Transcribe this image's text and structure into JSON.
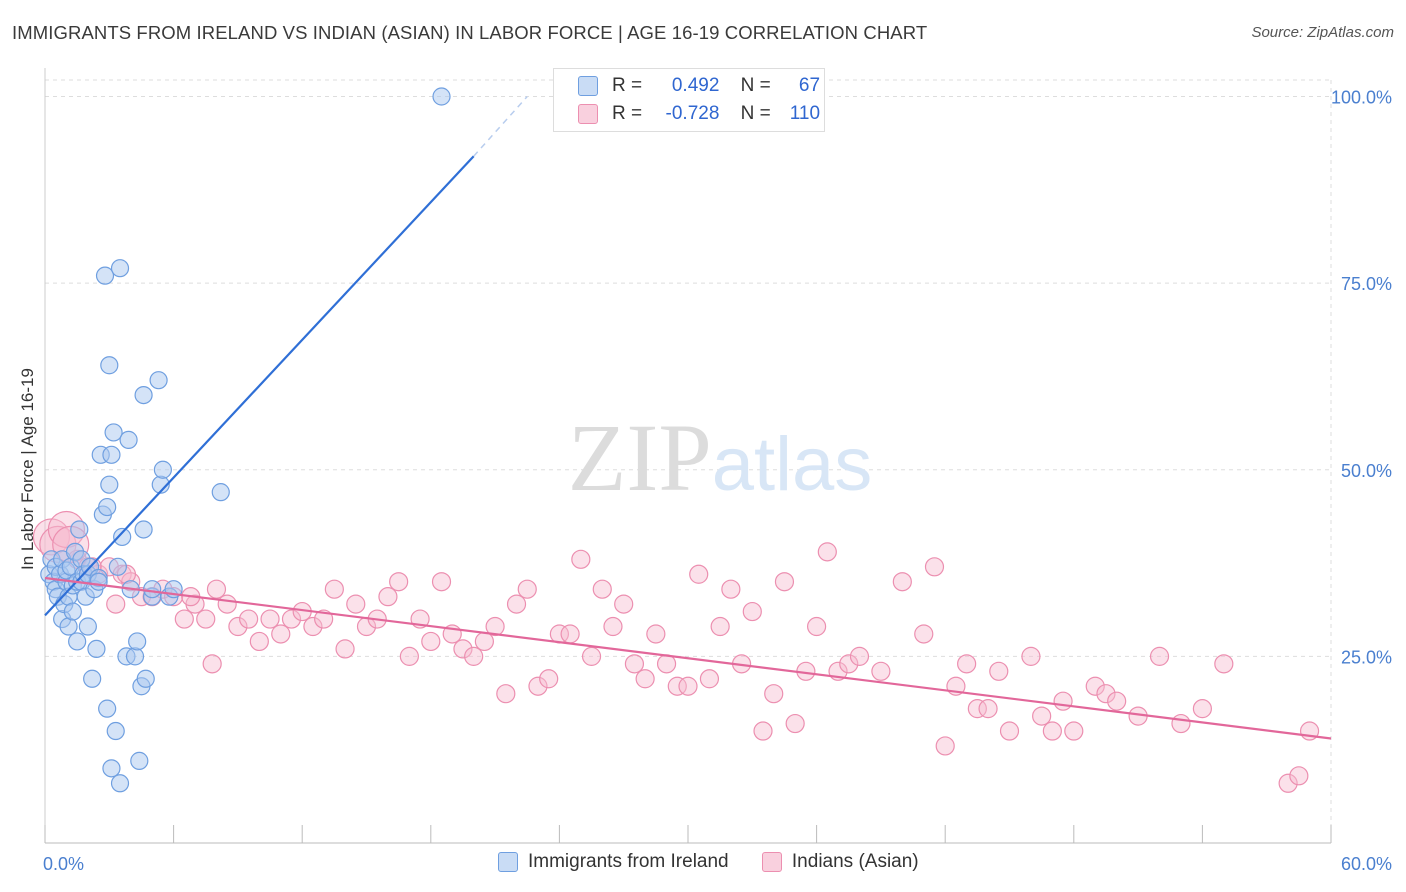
{
  "title": "IMMIGRANTS FROM IRELAND VS INDIAN (ASIAN) IN LABOR FORCE | AGE 16-19 CORRELATION CHART",
  "source": "Source: ZipAtlas.com",
  "watermark": "ZIPatlas",
  "legend": {
    "series1": {
      "r_label": "R =",
      "r_value": "0.492",
      "n_label": "N =",
      "n_value": "67"
    },
    "series2": {
      "r_label": "R =",
      "r_value": "-0.728",
      "n_label": "N =",
      "n_value": "110"
    }
  },
  "colors": {
    "blue_fill": "#aac8f0",
    "blue_stroke": "#6f9fe0",
    "blue_line": "#2f6fd6",
    "pink_fill": "#f7bcd0",
    "pink_stroke": "#ec8fb0",
    "pink_line": "#e2679a",
    "tick_color": "#4a7fcf",
    "grid": "#dddddd"
  },
  "chart_data": {
    "type": "scatter",
    "xlabel": "",
    "ylabel": "In Labor Force | Age 16-19",
    "xlim": [
      0,
      60
    ],
    "ylim": [
      0,
      100
    ],
    "x_tick_labels": [
      "0.0%",
      "60.0%"
    ],
    "y_ticks": [
      25,
      50,
      75,
      100
    ],
    "y_tick_labels": [
      "25.0%",
      "50.0%",
      "75.0%",
      "100.0%"
    ],
    "grid": "horizontal dashed",
    "legend_position": "bottom",
    "series": [
      {
        "name": "Immigrants from Ireland",
        "points": [
          [
            0.2,
            36
          ],
          [
            0.3,
            38
          ],
          [
            0.4,
            35
          ],
          [
            0.5,
            34
          ],
          [
            0.5,
            37
          ],
          [
            0.6,
            33
          ],
          [
            0.7,
            36
          ],
          [
            0.8,
            38
          ],
          [
            0.8,
            30
          ],
          [
            0.9,
            32
          ],
          [
            1.0,
            35
          ],
          [
            1.0,
            36.5
          ],
          [
            1.1,
            29
          ],
          [
            1.1,
            33
          ],
          [
            1.2,
            37
          ],
          [
            1.3,
            34.5
          ],
          [
            1.3,
            31
          ],
          [
            1.4,
            39
          ],
          [
            1.5,
            35
          ],
          [
            1.5,
            27
          ],
          [
            1.6,
            42
          ],
          [
            1.7,
            38
          ],
          [
            1.7,
            35
          ],
          [
            1.8,
            36
          ],
          [
            1.9,
            33
          ],
          [
            2.0,
            29
          ],
          [
            2.0,
            36
          ],
          [
            2.1,
            37
          ],
          [
            2.2,
            22
          ],
          [
            2.3,
            34
          ],
          [
            2.4,
            26
          ],
          [
            2.5,
            35.5
          ],
          [
            2.5,
            35
          ],
          [
            2.6,
            52
          ],
          [
            2.7,
            44
          ],
          [
            2.8,
            76
          ],
          [
            2.9,
            45
          ],
          [
            2.9,
            18
          ],
          [
            3.0,
            64
          ],
          [
            3.0,
            48
          ],
          [
            3.1,
            52
          ],
          [
            3.1,
            10
          ],
          [
            3.2,
            55
          ],
          [
            3.3,
            15
          ],
          [
            3.4,
            37
          ],
          [
            3.5,
            8
          ],
          [
            3.5,
            77
          ],
          [
            3.6,
            41
          ],
          [
            3.8,
            25
          ],
          [
            3.9,
            54
          ],
          [
            4.0,
            34
          ],
          [
            4.2,
            25
          ],
          [
            4.3,
            27
          ],
          [
            4.4,
            11
          ],
          [
            4.5,
            21
          ],
          [
            4.6,
            42
          ],
          [
            4.6,
            60
          ],
          [
            4.7,
            22
          ],
          [
            5.0,
            33
          ],
          [
            5.0,
            34
          ],
          [
            5.3,
            62
          ],
          [
            5.4,
            48
          ],
          [
            5.5,
            50
          ],
          [
            5.8,
            33
          ],
          [
            6.0,
            34
          ],
          [
            8.2,
            47
          ],
          [
            18.5,
            100
          ]
        ]
      },
      {
        "name": "Indians (Asian)",
        "points": [
          [
            0.3,
            41
          ],
          [
            0.6,
            40
          ],
          [
            1.0,
            42
          ],
          [
            1.5,
            38
          ],
          [
            2.0,
            37
          ],
          [
            2.5,
            36
          ],
          [
            3.0,
            37
          ],
          [
            3.3,
            32
          ],
          [
            3.6,
            36
          ],
          [
            4.0,
            35
          ],
          [
            4.5,
            33
          ],
          [
            5.0,
            33
          ],
          [
            5.5,
            34
          ],
          [
            6.0,
            33
          ],
          [
            6.5,
            30
          ],
          [
            7.0,
            32
          ],
          [
            7.5,
            30
          ],
          [
            8.0,
            34
          ],
          [
            8.5,
            32
          ],
          [
            9.0,
            29
          ],
          [
            9.5,
            30
          ],
          [
            10.0,
            27
          ],
          [
            10.5,
            30
          ],
          [
            11.0,
            28
          ],
          [
            11.5,
            30
          ],
          [
            12.0,
            31
          ],
          [
            12.5,
            29
          ],
          [
            13.0,
            30
          ],
          [
            13.5,
            34
          ],
          [
            14.0,
            26
          ],
          [
            14.5,
            32
          ],
          [
            15.0,
            29
          ],
          [
            15.5,
            30
          ],
          [
            16.0,
            33
          ],
          [
            16.5,
            35
          ],
          [
            17.0,
            25
          ],
          [
            17.5,
            30
          ],
          [
            18.0,
            27
          ],
          [
            18.5,
            35
          ],
          [
            19.0,
            28
          ],
          [
            19.5,
            26
          ],
          [
            20.0,
            25
          ],
          [
            20.5,
            27
          ],
          [
            21.0,
            29
          ],
          [
            21.5,
            20
          ],
          [
            22.0,
            32
          ],
          [
            22.5,
            34
          ],
          [
            23.0,
            21
          ],
          [
            23.5,
            22
          ],
          [
            24.0,
            28
          ],
          [
            24.5,
            28
          ],
          [
            25.0,
            38
          ],
          [
            25.5,
            25
          ],
          [
            26.0,
            34
          ],
          [
            26.5,
            29
          ],
          [
            27.0,
            32
          ],
          [
            27.5,
            24
          ],
          [
            28.0,
            22
          ],
          [
            28.5,
            28
          ],
          [
            29.0,
            24
          ],
          [
            29.5,
            21
          ],
          [
            30.0,
            21
          ],
          [
            30.5,
            36
          ],
          [
            31.0,
            22
          ],
          [
            31.5,
            29
          ],
          [
            32.0,
            34
          ],
          [
            32.5,
            24
          ],
          [
            33.0,
            31
          ],
          [
            33.5,
            15
          ],
          [
            34.0,
            20
          ],
          [
            34.5,
            35
          ],
          [
            35.0,
            16
          ],
          [
            35.5,
            23
          ],
          [
            36.0,
            29
          ],
          [
            36.5,
            39
          ],
          [
            37.0,
            23
          ],
          [
            37.5,
            24
          ],
          [
            38.0,
            25
          ],
          [
            39.0,
            23
          ],
          [
            40.0,
            35
          ],
          [
            41.0,
            28
          ],
          [
            41.5,
            37
          ],
          [
            42.0,
            13
          ],
          [
            42.5,
            21
          ],
          [
            43.0,
            24
          ],
          [
            43.5,
            18
          ],
          [
            44.0,
            18
          ],
          [
            44.5,
            23
          ],
          [
            45.0,
            15
          ],
          [
            46.0,
            25
          ],
          [
            46.5,
            17
          ],
          [
            47.0,
            15
          ],
          [
            47.5,
            19
          ],
          [
            48.0,
            15
          ],
          [
            49.0,
            21
          ],
          [
            49.5,
            20
          ],
          [
            50.0,
            19
          ],
          [
            51.0,
            17
          ],
          [
            52.0,
            25
          ],
          [
            53.0,
            16
          ],
          [
            54.0,
            18
          ],
          [
            55.0,
            24
          ],
          [
            58.0,
            8
          ],
          [
            58.5,
            9
          ],
          [
            59.0,
            15
          ],
          [
            1.2,
            40
          ],
          [
            2.2,
            37
          ],
          [
            3.8,
            36
          ],
          [
            6.8,
            33
          ],
          [
            7.8,
            24
          ]
        ]
      }
    ],
    "trendlines": [
      {
        "series": "Immigrants from Ireland",
        "from": [
          0,
          30.5
        ],
        "to": [
          20,
          92
        ],
        "dashed_to": [
          22.5,
          100
        ]
      },
      {
        "series": "Indians (Asian)",
        "from": [
          0,
          35.5
        ],
        "to": [
          60,
          14
        ]
      }
    ]
  },
  "bottom_legend": {
    "item1": "Immigrants from Ireland",
    "item2": "Indians (Asian)"
  }
}
